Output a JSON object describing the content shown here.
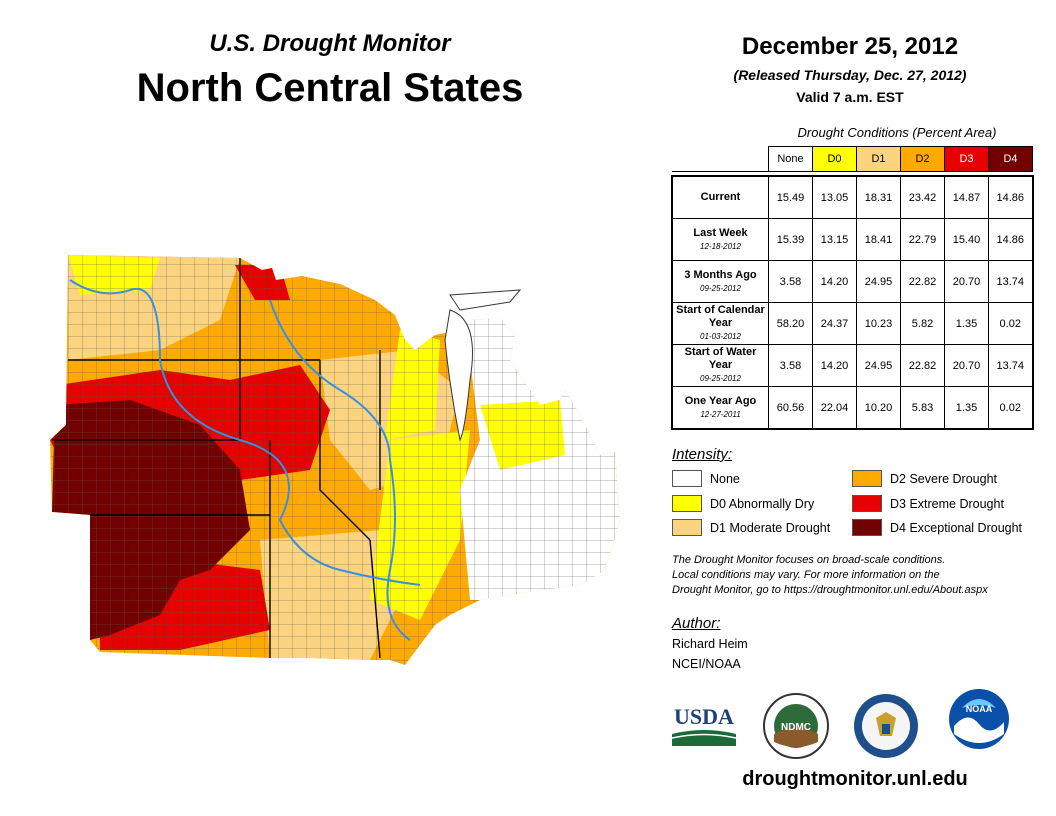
{
  "header": {
    "subtitle": "U.S. Drought Monitor",
    "title": "North Central States",
    "date": "December 25, 2012",
    "released": "(Released Thursday, Dec. 27, 2012)",
    "valid": "Valid 7 a.m. EST"
  },
  "conditions": {
    "caption": "Drought Conditions (Percent Area)",
    "columns": [
      {
        "label": "None",
        "color": "#ffffff"
      },
      {
        "label": "D0",
        "color": "#ffff00"
      },
      {
        "label": "D1",
        "color": "#fcd37f"
      },
      {
        "label": "D2",
        "color": "#ffaa00"
      },
      {
        "label": "D3",
        "color": "#e60000"
      },
      {
        "label": "D4",
        "color": "#730000"
      }
    ],
    "rows": [
      {
        "label": "Current",
        "date": "",
        "values": [
          "15.49",
          "13.05",
          "18.31",
          "23.42",
          "14.87",
          "14.86"
        ]
      },
      {
        "label": "Last Week",
        "date": "12-18-2012",
        "values": [
          "15.39",
          "13.15",
          "18.41",
          "22.79",
          "15.40",
          "14.86"
        ]
      },
      {
        "label": "3 Months Ago",
        "date": "09-25-2012",
        "values": [
          "3.58",
          "14.20",
          "24.95",
          "22.82",
          "20.70",
          "13.74"
        ]
      },
      {
        "label": "Start of Calendar Year",
        "date": "01-03-2012",
        "values": [
          "58.20",
          "24.37",
          "10.23",
          "5.82",
          "1.35",
          "0.02"
        ]
      },
      {
        "label": "Start of Water Year",
        "date": "09-25-2012",
        "values": [
          "3.58",
          "14.20",
          "24.95",
          "22.82",
          "20.70",
          "13.74"
        ]
      },
      {
        "label": "One Year Ago",
        "date": "12-27-2011",
        "values": [
          "60.56",
          "22.04",
          "10.20",
          "5.83",
          "1.35",
          "0.02"
        ]
      }
    ]
  },
  "legend": {
    "title": "Intensity:",
    "items": [
      {
        "label": "None",
        "color": "#ffffff"
      },
      {
        "label": "D0 Abnormally Dry",
        "color": "#ffff00"
      },
      {
        "label": "D1 Moderate Drought",
        "color": "#fcd37f"
      },
      {
        "label": "D2 Severe Drought",
        "color": "#ffaa00"
      },
      {
        "label": "D3 Extreme Drought",
        "color": "#e60000"
      },
      {
        "label": "D4 Exceptional Drought",
        "color": "#730000"
      }
    ]
  },
  "note": {
    "line1": "The Drought Monitor focuses on broad-scale conditions.",
    "line2": "Local conditions may vary. For more information on the",
    "line3": "Drought Monitor, go to https://droughtmonitor.unl.edu/About.aspx"
  },
  "author": {
    "title": "Author:",
    "name": "Richard Heim",
    "org": "NCEI/NOAA"
  },
  "logos": {
    "usda": "USDA",
    "ndmc": "NDMC",
    "noaa": "NOAA"
  },
  "website": "droughtmonitor.unl.edu"
}
